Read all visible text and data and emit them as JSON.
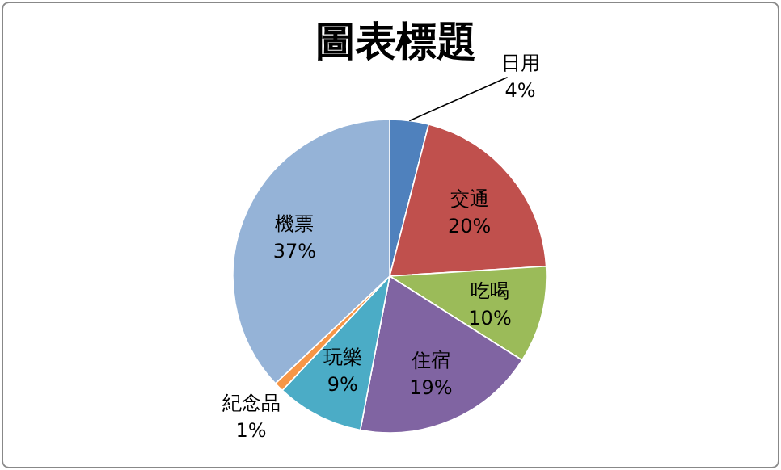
{
  "chart_data": {
    "type": "pie",
    "title": "圖表標題",
    "categories": [
      "日用",
      "交通",
      "吃喝",
      "住宿",
      "玩樂",
      "紀念品",
      "機票"
    ],
    "values": [
      4,
      20,
      10,
      19,
      9,
      1,
      37
    ],
    "colors": [
      "#4f81bd",
      "#c0504d",
      "#9bbb59",
      "#8064a2",
      "#4bacc6",
      "#f79646",
      "#95b3d7"
    ],
    "value_labels": [
      "4%",
      "20%",
      "10%",
      "19%",
      "9%",
      "1%",
      "37%"
    ]
  }
}
